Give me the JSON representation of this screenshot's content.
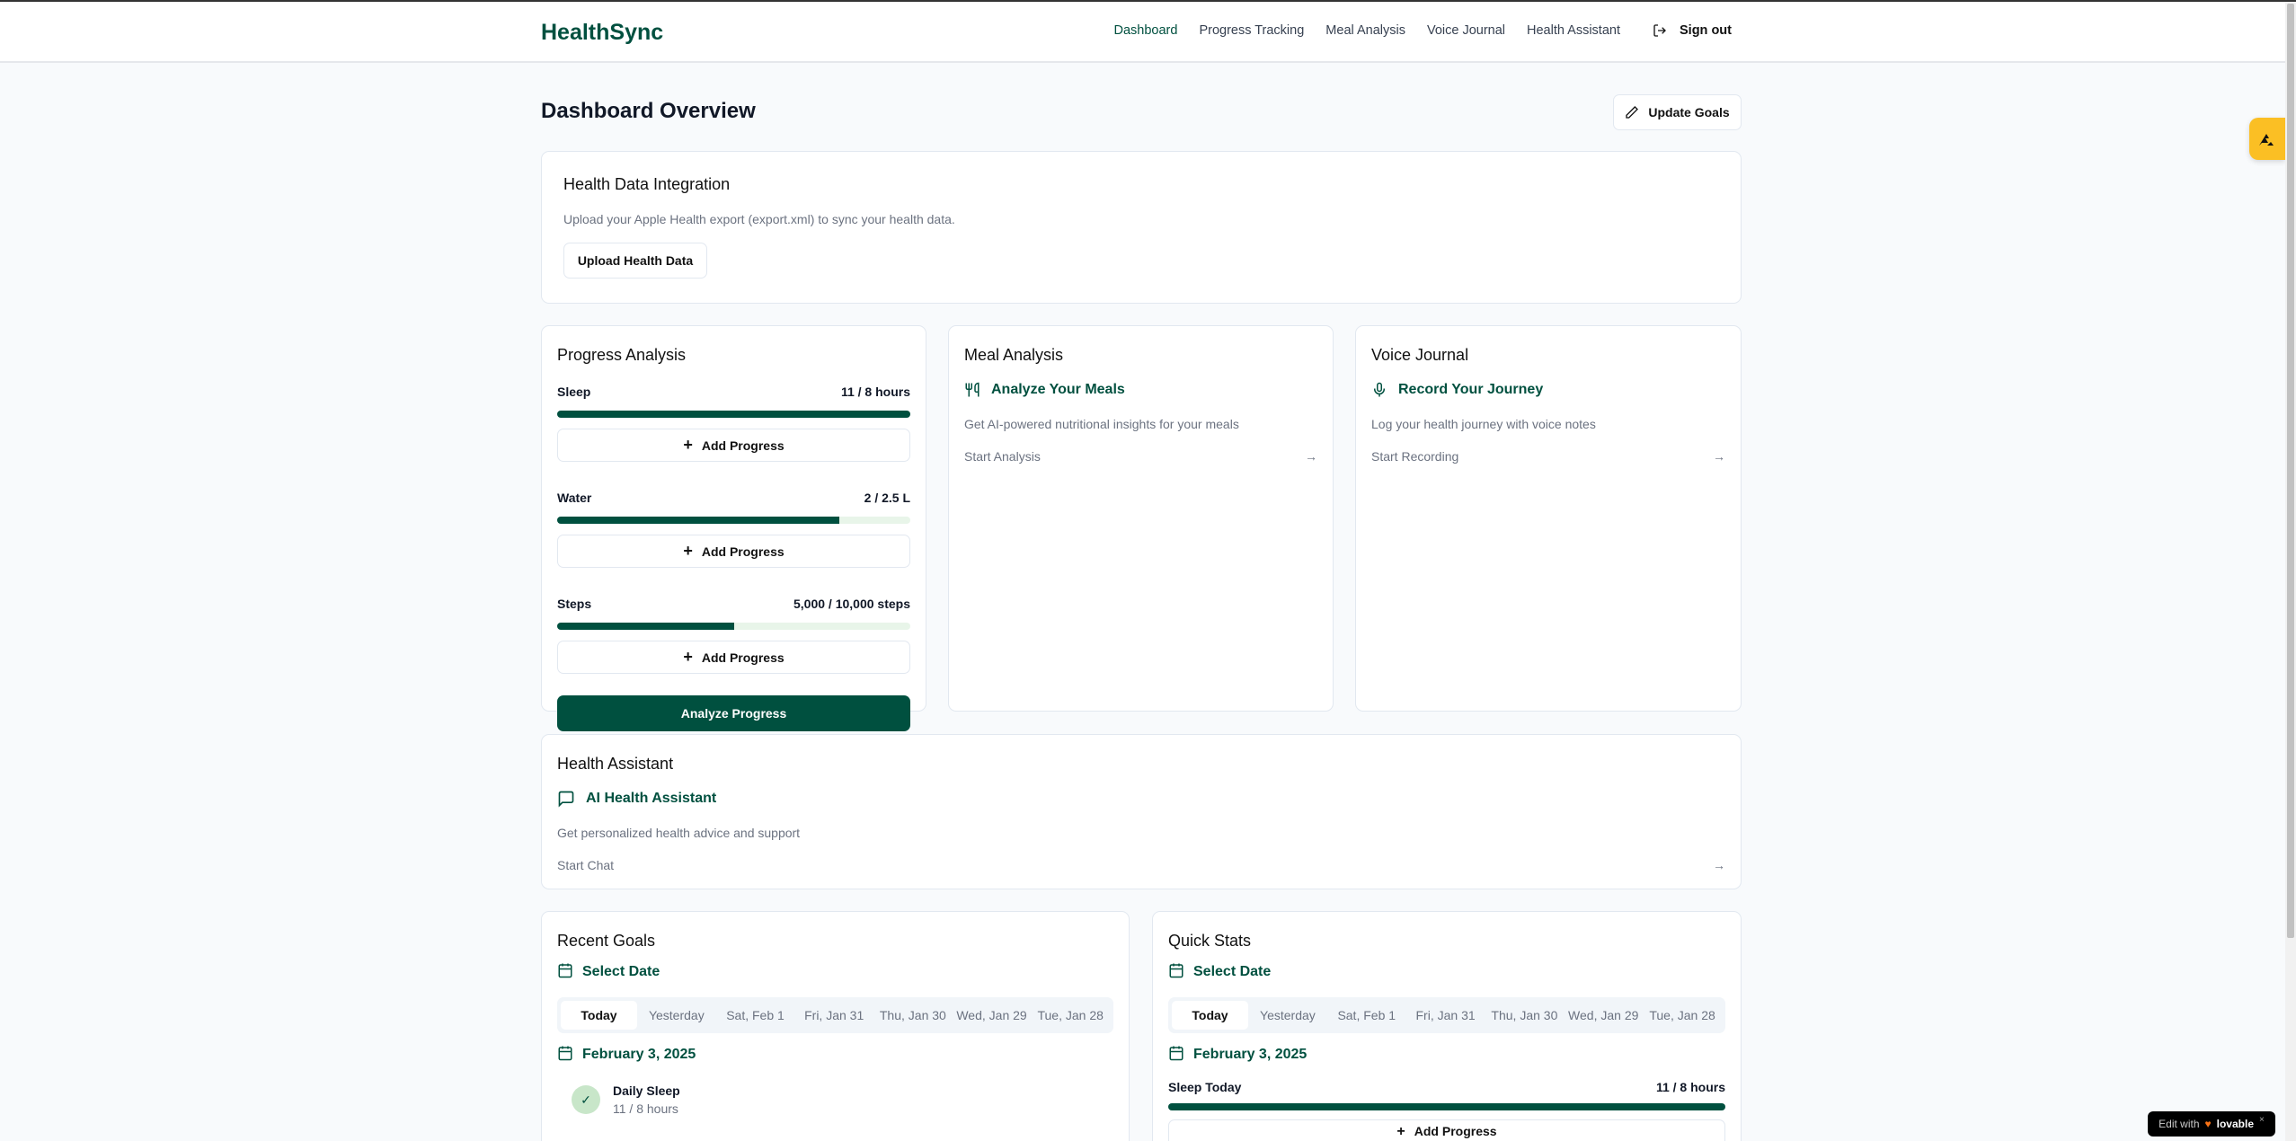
{
  "header": {
    "logo": "HealthSync",
    "nav": [
      "Dashboard",
      "Progress Tracking",
      "Meal Analysis",
      "Voice Journal",
      "Health Assistant"
    ],
    "sign_out": "Sign out"
  },
  "page": {
    "title": "Dashboard Overview",
    "update_goals": "Update Goals"
  },
  "integration": {
    "title": "Health Data Integration",
    "desc": "Upload your Apple Health export (export.xml) to sync your health data.",
    "button": "Upload Health Data"
  },
  "progress": {
    "title": "Progress Analysis",
    "items": [
      {
        "label": "Sleep",
        "value": "11 / 8 hours",
        "percent": 100
      },
      {
        "label": "Water",
        "value": "2 / 2.5 L",
        "percent": 80
      },
      {
        "label": "Steps",
        "value": "5,000 / 10,000 steps",
        "percent": 50
      }
    ],
    "add_label": "Add Progress",
    "analyze": "Analyze Progress"
  },
  "meal": {
    "title": "Meal Analysis",
    "feature": "Analyze Your Meals",
    "desc": "Get AI-powered nutritional insights for your meals",
    "link": "Start Analysis"
  },
  "voice": {
    "title": "Voice Journal",
    "feature": "Record Your Journey",
    "desc": "Log your health journey with voice notes",
    "link": "Start Recording"
  },
  "assistant": {
    "title": "Health Assistant",
    "feature": "AI Health Assistant",
    "desc": "Get personalized health advice and support",
    "link": "Start Chat"
  },
  "date_tabs": [
    "Today",
    "Yesterday",
    "Sat, Feb 1",
    "Fri, Jan 31",
    "Thu, Jan 30",
    "Wed, Jan 29",
    "Tue, Jan 28"
  ],
  "recent_goals": {
    "title": "Recent Goals",
    "select_date": "Select Date",
    "date": "February 3, 2025",
    "goal_name": "Daily Sleep",
    "goal_value": "11 / 8 hours"
  },
  "quick_stats": {
    "title": "Quick Stats",
    "select_date": "Select Date",
    "date": "February 3, 2025",
    "stat_label": "Sleep Today",
    "stat_value": "11 / 8 hours",
    "stat_percent": 100,
    "add_label": "Add Progress"
  },
  "badge": {
    "text": "Edit with",
    "brand": "lovable"
  },
  "colors": {
    "accent": "#00503f",
    "widget": "#fbbf24"
  }
}
